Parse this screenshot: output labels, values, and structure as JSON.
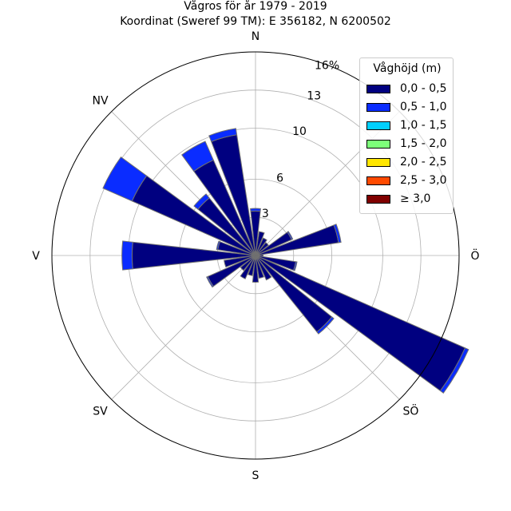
{
  "chart_data": {
    "type": "polar-bar",
    "title_line1": "Vågros för år 1979 - 2019",
    "title_line2": "Koordinat (Sweref 99 TM): E 356182, N 6200502",
    "direction_labels": [
      "N",
      "NV",
      "V",
      "SV",
      "S",
      "SÖ",
      "Ö"
    ],
    "radial_ticks": [
      3,
      6,
      10,
      13,
      16
    ],
    "radial_max": 16,
    "radial_unit": "%",
    "legend_title": "Våghöjd (m)",
    "bins": [
      {
        "label": "0,0 - 0,5",
        "color": "#000080"
      },
      {
        "label": "0,5 - 1,0",
        "color": "#0a2cff"
      },
      {
        "label": "1,0 - 1,5",
        "color": "#00d0ff"
      },
      {
        "label": "1,5 - 2,0",
        "color": "#7dff7a"
      },
      {
        "label": "2,0 - 2,5",
        "color": "#ffe600"
      },
      {
        "label": "2,5 - 3,0",
        "color": "#ff4a00"
      },
      {
        "label": "≥ 3,0",
        "color": "#800000"
      }
    ],
    "sectors": [
      {
        "direction_deg": 0,
        "values": [
          3.5,
          0.2
        ]
      },
      {
        "direction_deg": 15,
        "values": [
          1.9,
          0.0
        ]
      },
      {
        "direction_deg": 30,
        "values": [
          1.5,
          0.0
        ]
      },
      {
        "direction_deg": 45,
        "values": [
          1.3,
          0.0
        ]
      },
      {
        "direction_deg": 60,
        "values": [
          3.1,
          0.1
        ]
      },
      {
        "direction_deg": 75,
        "values": [
          6.6,
          0.2
        ]
      },
      {
        "direction_deg": 90,
        "values": [
          0.6,
          0.0
        ]
      },
      {
        "direction_deg": 105,
        "values": [
          3.2,
          0.1
        ]
      },
      {
        "direction_deg": 120,
        "values": [
          18.0,
          0.3
        ]
      },
      {
        "direction_deg": 135,
        "values": [
          7.7,
          0.2
        ]
      },
      {
        "direction_deg": 150,
        "values": [
          2.1,
          0.0
        ]
      },
      {
        "direction_deg": 165,
        "values": [
          1.8,
          0.0
        ]
      },
      {
        "direction_deg": 180,
        "values": [
          2.1,
          0.0
        ]
      },
      {
        "direction_deg": 195,
        "values": [
          1.6,
          0.0
        ]
      },
      {
        "direction_deg": 210,
        "values": [
          2.0,
          0.0
        ]
      },
      {
        "direction_deg": 225,
        "values": [
          1.5,
          0.0
        ]
      },
      {
        "direction_deg": 240,
        "values": [
          4.1,
          0.1
        ]
      },
      {
        "direction_deg": 255,
        "values": [
          2.5,
          0.0
        ]
      },
      {
        "direction_deg": 270,
        "values": [
          9.7,
          0.8
        ]
      },
      {
        "direction_deg": 285,
        "values": [
          3.0,
          0.1
        ]
      },
      {
        "direction_deg": 300,
        "values": [
          10.6,
          2.5
        ]
      },
      {
        "direction_deg": 315,
        "values": [
          5.8,
          0.4
        ]
      },
      {
        "direction_deg": 330,
        "values": [
          8.2,
          1.6
        ]
      },
      {
        "direction_deg": 345,
        "values": [
          9.6,
          0.5
        ]
      }
    ]
  }
}
